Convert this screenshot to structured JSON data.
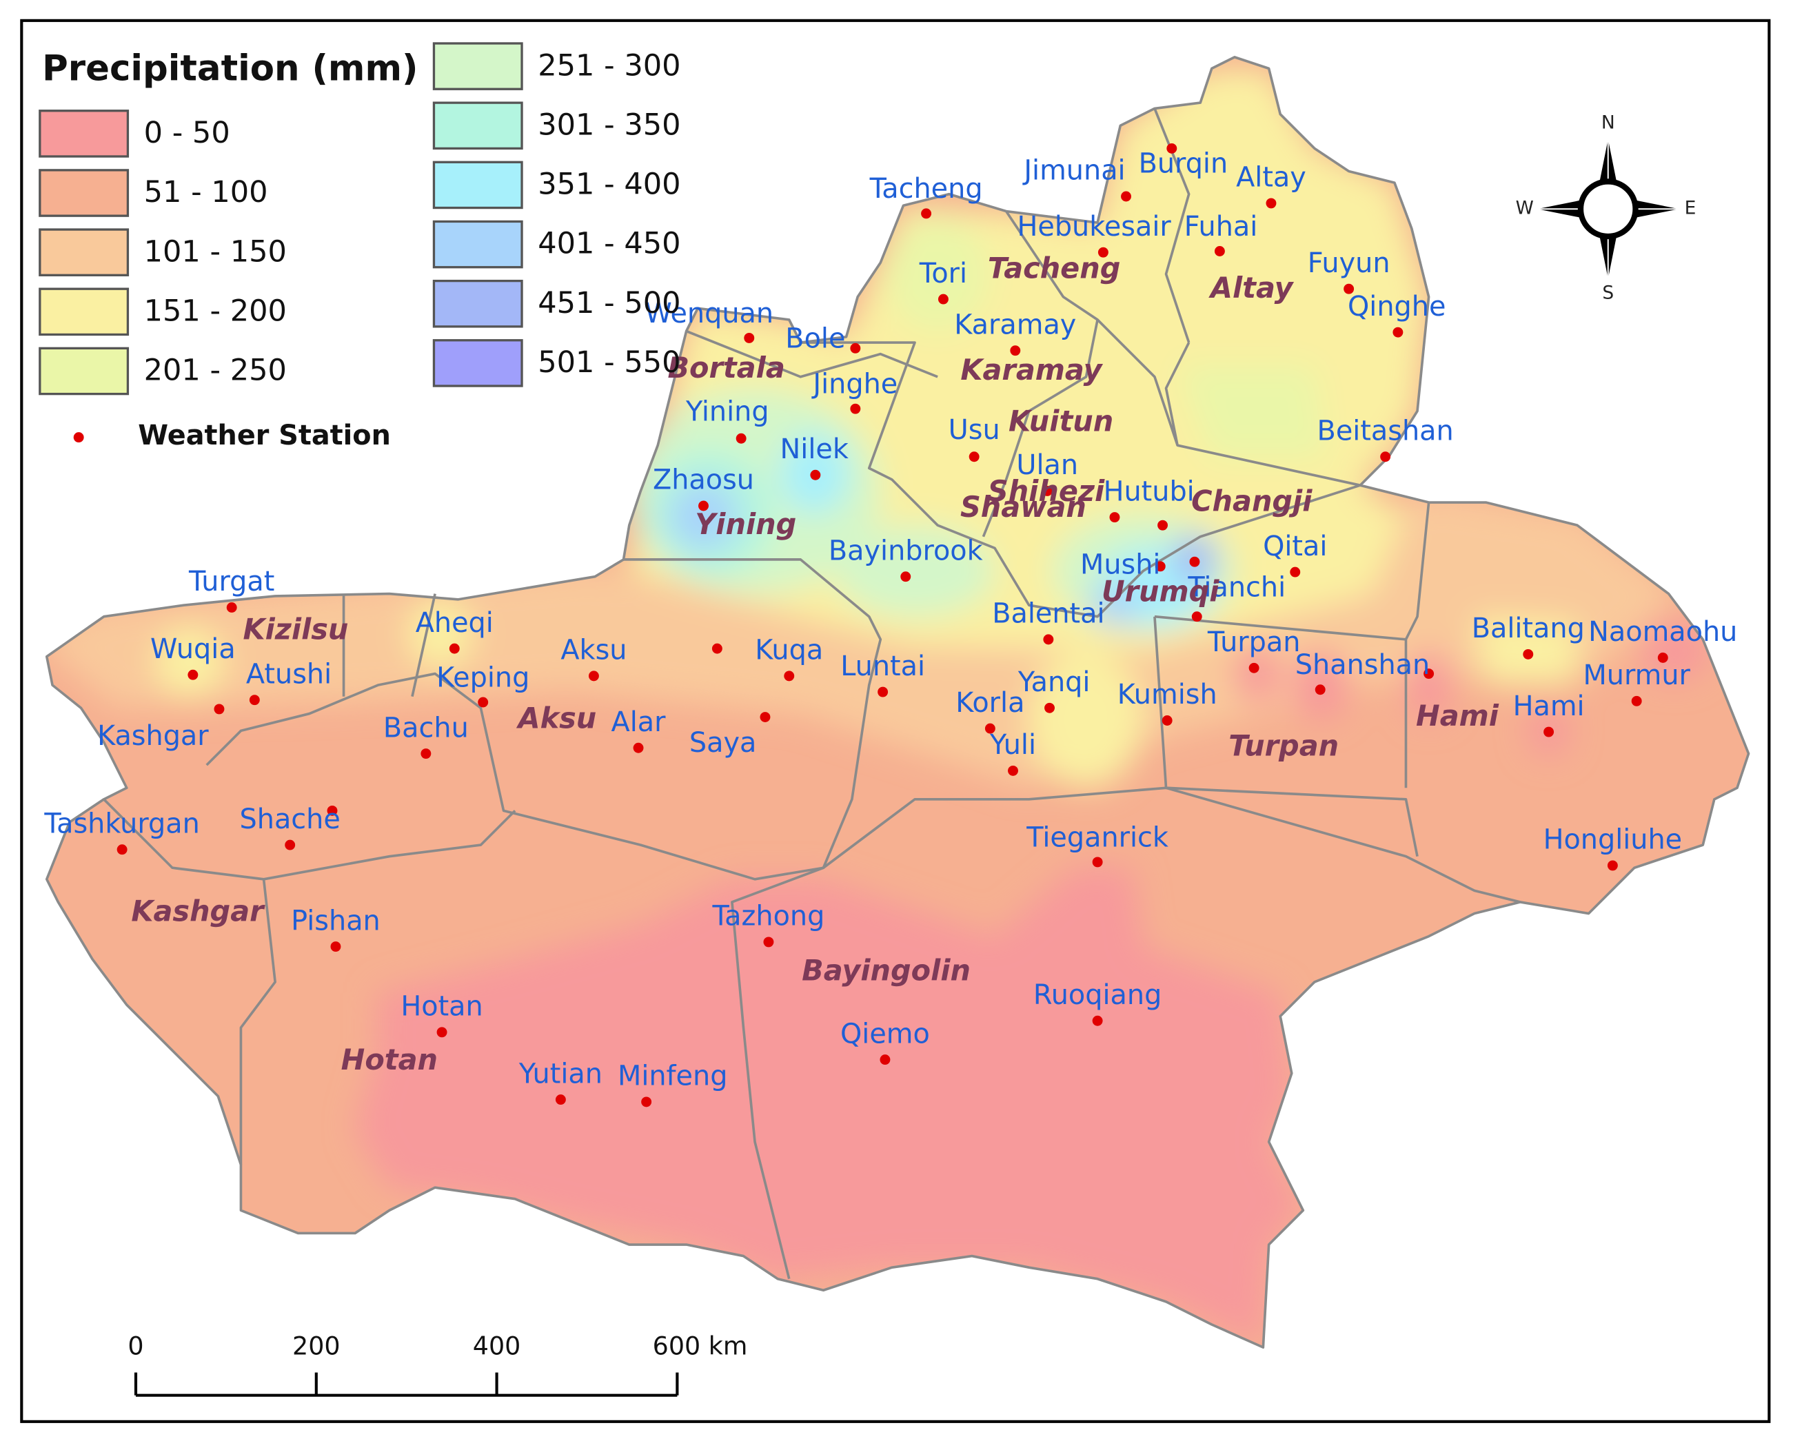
{
  "legend": {
    "title": "Precipitation (mm)",
    "classes": [
      {
        "label": "0 - 50",
        "color": "#f79a9b"
      },
      {
        "label": "51 - 100",
        "color": "#f6b091"
      },
      {
        "label": "101 - 150",
        "color": "#f9c99b"
      },
      {
        "label": "151 - 200",
        "color": "#faf0a2"
      },
      {
        "label": "201 - 250",
        "color": "#eaf6a8"
      },
      {
        "label": "251 - 300",
        "color": "#d4f6c9"
      },
      {
        "label": "301 - 350",
        "color": "#b3f5e0"
      },
      {
        "label": "351 - 400",
        "color": "#a7f0fb"
      },
      {
        "label": "401 - 450",
        "color": "#a8d4fb"
      },
      {
        "label": "451 - 500",
        "color": "#a3b7f7"
      },
      {
        "label": "501 - 550",
        "color": "#9f9ffb"
      }
    ],
    "station_label": "Weather Station"
  },
  "stations": [
    "Tacheng",
    "Jimunai",
    "Burqin",
    "Altay",
    "Hebukesair",
    "Fuhai",
    "Fuyun",
    "Qinghe",
    "Tori",
    "Karamay",
    "Wenquan",
    "Bole",
    "Jinghe",
    "Yining",
    "Usu",
    "Nilek",
    "Ulan",
    "Hutubi",
    "Zhaosu",
    "Beitashan",
    "Bayinbrook",
    "Mushi",
    "Qitai",
    "Tianchi",
    "Turgat",
    "Balentai",
    "Aheqi",
    "Wuqia",
    "Aksu",
    "Kuqa",
    "Balitang",
    "Naomaohu",
    "Turpan",
    "Shanshan",
    "Atushi",
    "Luntai",
    "Keping",
    "Murmur",
    "Yanqi",
    "Kumish",
    "Korla",
    "Hami",
    "Kashgar",
    "Alar",
    "Bachu",
    "Saya",
    "Yuli",
    "Tashkurgan",
    "Shache",
    "Hongliuhe",
    "Tieganrick",
    "Pishan",
    "Tazhong",
    "Ruoqiang",
    "Hotan",
    "Qiemo",
    "Yutian",
    "Minfeng"
  ],
  "regions": [
    "Tacheng",
    "Altay",
    "Karamay",
    "Bortala",
    "Kuitun",
    "Shihezi",
    "Shawan",
    "Changji",
    "Yining",
    "Urumqi",
    "Kizilsu",
    "Aksu",
    "Turpan",
    "Hami",
    "Kashgar",
    "Bayingolin",
    "Hotan"
  ],
  "compass": {
    "north": "N",
    "south": "S",
    "east": "E",
    "west": "W"
  },
  "scale_bar": {
    "labels": [
      "0",
      "200",
      "400",
      "600 km"
    ]
  }
}
